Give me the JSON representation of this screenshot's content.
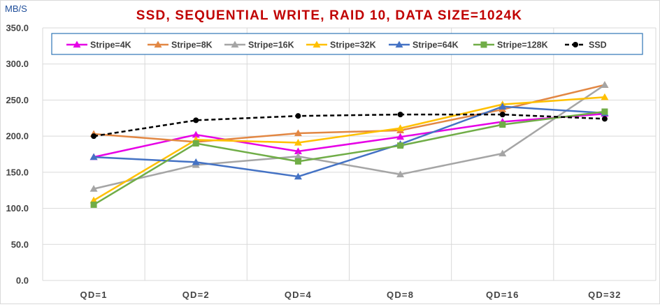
{
  "chart_data": {
    "type": "line",
    "title": "SSD, SEQUENTIAL WRITE, RAID 10, DATA SIZE=1024K",
    "title_color": "#c00000",
    "ylabel": "MB/S",
    "xlabel": "",
    "categories": [
      "QD=1",
      "QD=2",
      "QD=4",
      "QD=8",
      "QD=16",
      "QD=32"
    ],
    "ylim": [
      0,
      350
    ],
    "yticks": [
      "0.0",
      "50.0",
      "100.0",
      "150.0",
      "200.0",
      "250.0",
      "300.0",
      "350.0"
    ],
    "grid": true,
    "legend_position": "top",
    "series": [
      {
        "name": "Stripe=4K",
        "color": "#e600e6",
        "marker": "triangle",
        "dashed": false,
        "values": [
          171,
          202,
          179,
          199,
          220,
          231
        ]
      },
      {
        "name": "Stripe=8K",
        "color": "#e28743",
        "marker": "triangle",
        "dashed": false,
        "values": [
          203,
          192,
          204,
          208,
          237,
          271
        ]
      },
      {
        "name": "Stripe=16K",
        "color": "#a5a5a5",
        "marker": "triangle",
        "dashed": false,
        "values": [
          127,
          160,
          172,
          147,
          176,
          271
        ]
      },
      {
        "name": "Stripe=32K",
        "color": "#ffc000",
        "marker": "triangle",
        "dashed": false,
        "values": [
          111,
          195,
          191,
          211,
          244,
          254
        ]
      },
      {
        "name": "Stripe=64K",
        "color": "#4472c4",
        "marker": "triangle",
        "dashed": false,
        "values": [
          171,
          164,
          144,
          189,
          241,
          232
        ]
      },
      {
        "name": "Stripe=128K",
        "color": "#70ad47",
        "marker": "square",
        "dashed": false,
        "values": [
          105,
          190,
          165,
          187,
          216,
          234
        ]
      },
      {
        "name": "SSD",
        "color": "#000000",
        "marker": "circle",
        "dashed": true,
        "values": [
          200,
          222,
          228,
          230,
          230,
          224
        ]
      }
    ]
  }
}
